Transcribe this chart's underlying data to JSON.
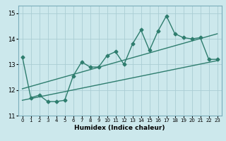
{
  "title": "",
  "xlabel": "Humidex (Indice chaleur)",
  "ylabel": "",
  "background_color": "#cce8ec",
  "grid_color": "#aacdd4",
  "line_color": "#2e7d6e",
  "xlim": [
    -0.5,
    23.5
  ],
  "ylim": [
    11,
    15.3
  ],
  "yticks": [
    11,
    12,
    13,
    14,
    15
  ],
  "xticks": [
    0,
    1,
    2,
    3,
    4,
    5,
    6,
    7,
    8,
    9,
    10,
    11,
    12,
    13,
    14,
    15,
    16,
    17,
    18,
    19,
    20,
    21,
    22,
    23
  ],
  "series1_x": [
    0,
    1,
    2,
    3,
    4,
    5,
    6,
    7,
    8,
    9,
    10,
    11,
    12,
    13,
    14,
    15,
    16,
    17,
    18,
    19,
    20,
    21,
    22,
    23
  ],
  "series1_y": [
    13.3,
    11.7,
    11.8,
    11.55,
    11.55,
    11.6,
    12.55,
    13.1,
    12.9,
    12.9,
    13.35,
    13.5,
    13.0,
    13.8,
    14.35,
    13.55,
    14.3,
    14.9,
    14.2,
    14.05,
    14.0,
    14.05,
    13.2,
    13.2
  ],
  "series2_x": [
    0,
    23
  ],
  "series2_y": [
    11.6,
    13.15
  ],
  "series3_x": [
    0,
    23
  ],
  "series3_y": [
    12.05,
    14.2
  ],
  "markersize": 2.5,
  "linewidth": 1.0
}
